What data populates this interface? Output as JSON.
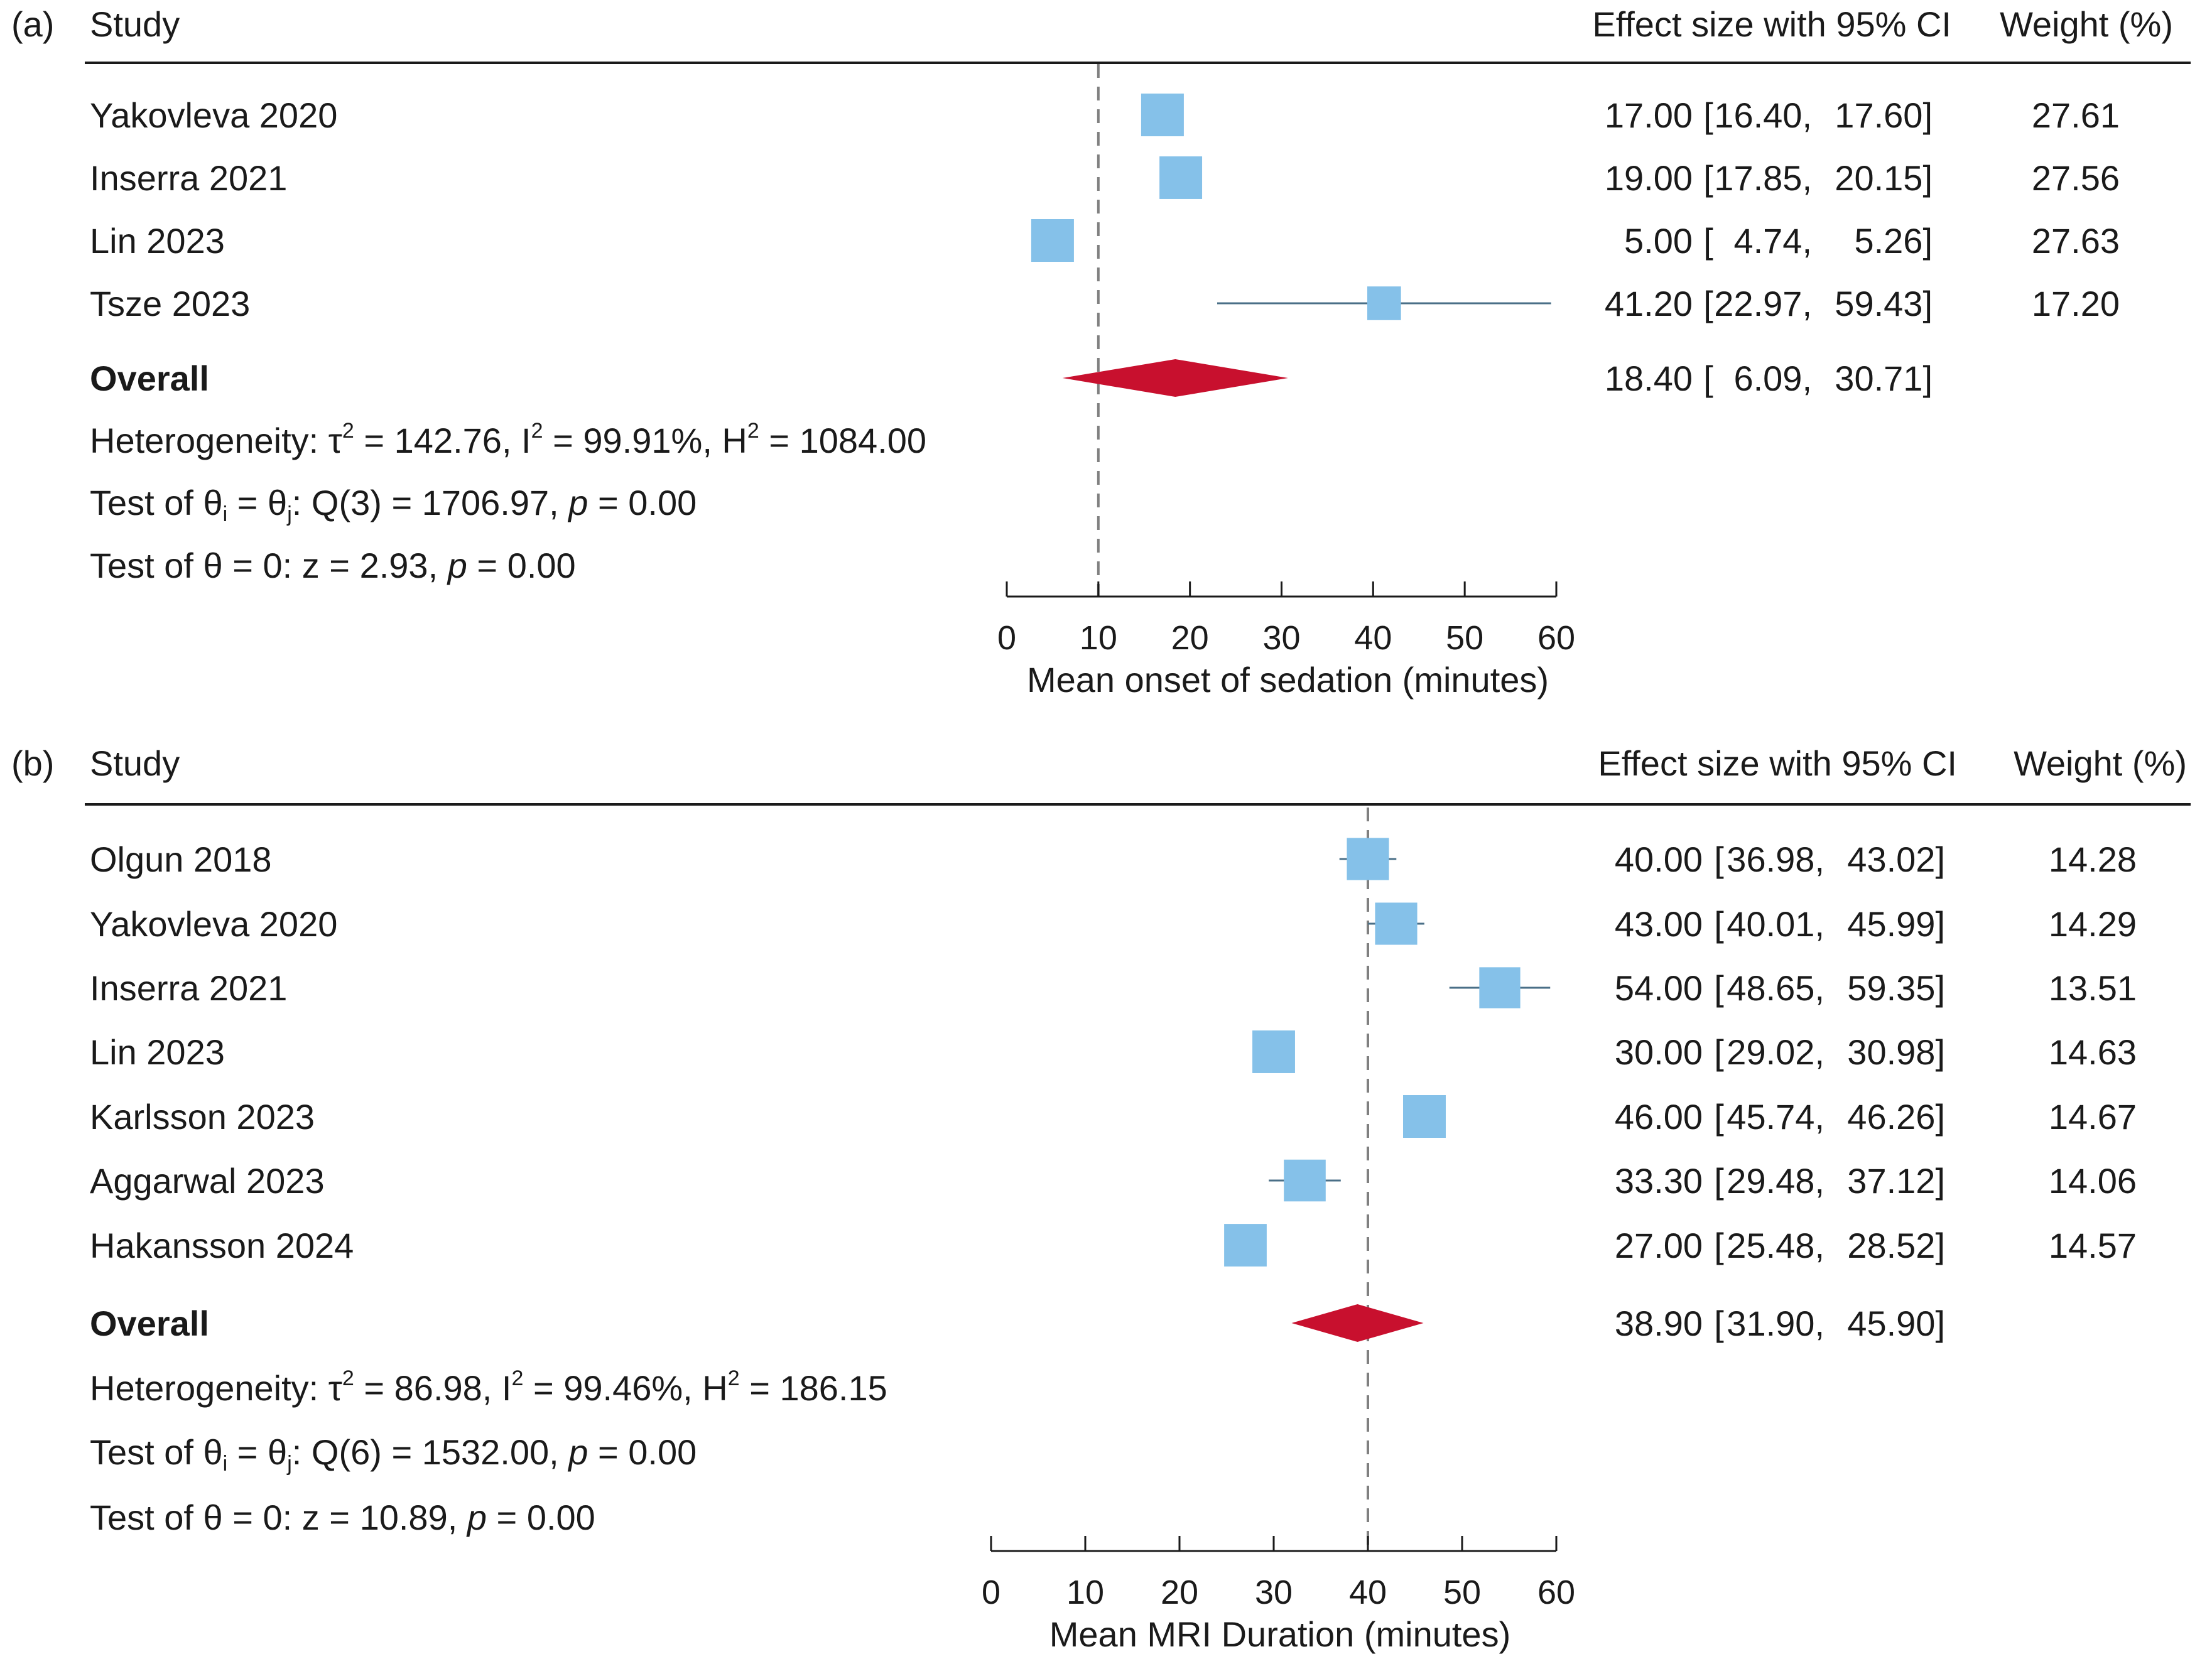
{
  "chart_data": [
    {
      "type": "forest",
      "panel_label": "(a)",
      "header": {
        "study": "Study",
        "effect": "Effect size with 95% CI",
        "weight": "Weight (%)"
      },
      "studies": [
        {
          "name": "Yakovleva 2020",
          "es": 17.0,
          "lo": 16.4,
          "hi": 17.6,
          "es_text": "17.00",
          "lo_text": "16.40",
          "hi_text": "17.60",
          "weight": 27.61,
          "weight_text": "27.61"
        },
        {
          "name": "Inserra 2021",
          "es": 19.0,
          "lo": 17.85,
          "hi": 20.15,
          "es_text": "19.00",
          "lo_text": "17.85",
          "hi_text": "20.15",
          "weight": 27.56,
          "weight_text": "27.56"
        },
        {
          "name": "Lin 2023",
          "es": 5.0,
          "lo": 4.74,
          "hi": 5.26,
          "es_text": "5.00",
          "lo_text": "4.74",
          "hi_text": "5.26",
          "weight": 27.63,
          "weight_text": "27.63"
        },
        {
          "name": "Tsze 2023",
          "es": 41.2,
          "lo": 22.97,
          "hi": 59.43,
          "es_text": "41.20",
          "lo_text": "22.97",
          "hi_text": "59.43",
          "weight": 17.2,
          "weight_text": "17.20"
        }
      ],
      "overall": {
        "label": "Overall",
        "es": 18.4,
        "lo": 6.09,
        "hi": 30.71,
        "es_text": "18.40",
        "lo_text": "6.09",
        "hi_text": "30.71"
      },
      "stats": {
        "heterogeneity": {
          "prefix": "Heterogeneity: τ",
          "tau2": "142.76",
          "i2": "99.91%",
          "h2": "1084.00"
        },
        "test_ij": {
          "q_df": "3",
          "q": "1706.97",
          "p": "0.00"
        },
        "test_zero": {
          "z": "2.93",
          "p": "0.00"
        }
      },
      "xlim": [
        0,
        60
      ],
      "ticks": [
        0,
        10,
        20,
        30,
        40,
        50,
        60
      ],
      "ref_line": 10,
      "xlabel": "Mean onset of sedation (minutes)",
      "colors": {
        "marker": "#85c1e9",
        "ci": "#4a6f87",
        "diamond": "#c8102e",
        "ref": "#808080"
      }
    },
    {
      "type": "forest",
      "panel_label": "(b)",
      "header": {
        "study": "Study",
        "effect": "Effect size with 95% CI",
        "weight": "Weight (%)"
      },
      "studies": [
        {
          "name": "Olgun 2018",
          "es": 40.0,
          "lo": 36.98,
          "hi": 43.02,
          "es_text": "40.00",
          "lo_text": "36.98",
          "hi_text": "43.02",
          "weight": 14.28,
          "weight_text": "14.28"
        },
        {
          "name": "Yakovleva 2020",
          "es": 43.0,
          "lo": 40.01,
          "hi": 45.99,
          "es_text": "43.00",
          "lo_text": "40.01",
          "hi_text": "45.99",
          "weight": 14.29,
          "weight_text": "14.29"
        },
        {
          "name": "Inserra 2021",
          "es": 54.0,
          "lo": 48.65,
          "hi": 59.35,
          "es_text": "54.00",
          "lo_text": "48.65",
          "hi_text": "59.35",
          "weight": 13.51,
          "weight_text": "13.51"
        },
        {
          "name": "Lin 2023",
          "es": 30.0,
          "lo": 29.02,
          "hi": 30.98,
          "es_text": "30.00",
          "lo_text": "29.02",
          "hi_text": "30.98",
          "weight": 14.63,
          "weight_text": "14.63"
        },
        {
          "name": "Karlsson 2023",
          "es": 46.0,
          "lo": 45.74,
          "hi": 46.26,
          "es_text": "46.00",
          "lo_text": "45.74",
          "hi_text": "46.26",
          "weight": 14.67,
          "weight_text": "14.67"
        },
        {
          "name": "Aggarwal 2023",
          "es": 33.3,
          "lo": 29.48,
          "hi": 37.12,
          "es_text": "33.30",
          "lo_text": "29.48",
          "hi_text": "37.12",
          "weight": 14.06,
          "weight_text": "14.06"
        },
        {
          "name": "Hakansson 2024",
          "es": 27.0,
          "lo": 25.48,
          "hi": 28.52,
          "es_text": "27.00",
          "lo_text": "25.48",
          "hi_text": "28.52",
          "weight": 14.57,
          "weight_text": "14.57"
        }
      ],
      "overall": {
        "label": "Overall",
        "es": 38.9,
        "lo": 31.9,
        "hi": 45.9,
        "es_text": "38.90",
        "lo_text": "31.90",
        "hi_text": "45.90"
      },
      "stats": {
        "heterogeneity": {
          "prefix": "Heterogeneity: τ",
          "tau2": "86.98",
          "i2": "99.46%",
          "h2": "186.15"
        },
        "test_ij": {
          "q_df": "6",
          "q": "1532.00",
          "p": "0.00"
        },
        "test_zero": {
          "z": "10.89",
          "p": "0.00"
        }
      },
      "xlim": [
        0,
        60
      ],
      "ticks": [
        0,
        10,
        20,
        30,
        40,
        50,
        60
      ],
      "ref_line": 40,
      "xlabel": "Mean MRI Duration (minutes)",
      "colors": {
        "marker": "#85c1e9",
        "ci": "#4a6f87",
        "diamond": "#c8102e",
        "ref": "#808080"
      }
    }
  ]
}
